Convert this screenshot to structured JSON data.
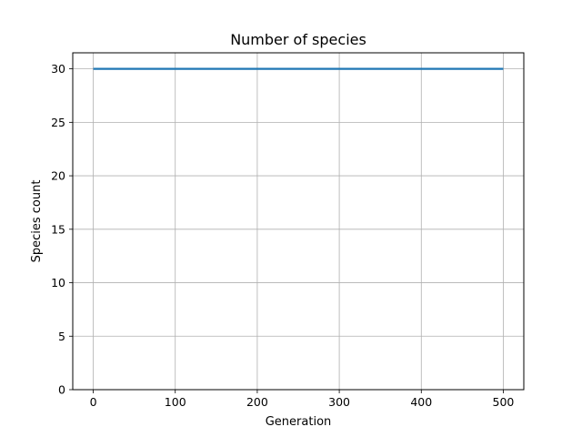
{
  "chart_data": {
    "type": "line",
    "title": "Number of species",
    "xlabel": "Generation",
    "ylabel": "Species count",
    "xlim": [
      -25,
      525
    ],
    "ylim": [
      0,
      31.5
    ],
    "xticks": [
      0,
      100,
      200,
      300,
      400,
      500
    ],
    "yticks": [
      0,
      5,
      10,
      15,
      20,
      25,
      30
    ],
    "grid": true,
    "series": [
      {
        "x": [
          0,
          500
        ],
        "y": [
          30,
          30
        ],
        "color": "#1f77b4"
      }
    ]
  }
}
